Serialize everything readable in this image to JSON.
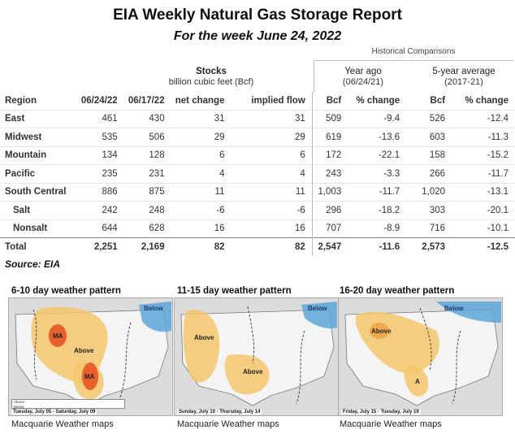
{
  "title": "EIA Weekly Natural Gas Storage Report",
  "subtitle": "For the week June 24, 2022",
  "historical_label": "Historical Comparisons",
  "stocks_header": {
    "title": "Stocks",
    "unit": "billion cubic feet (Bcf)"
  },
  "year_ago_header": {
    "title": "Year ago",
    "date": "(06/24/21)"
  },
  "five_year_header": {
    "title": "5-year average",
    "range": "(2017-21)"
  },
  "columns": [
    "Region",
    "06/24/22",
    "06/17/22",
    "net change",
    "implied flow",
    "Bcf",
    "% change",
    "Bcf",
    "% change"
  ],
  "rows": [
    {
      "region": "East",
      "c1": "461",
      "c2": "430",
      "net": "31",
      "flow": "31",
      "ya_bcf": "509",
      "ya_pct": "-9.4",
      "fy_bcf": "526",
      "fy_pct": "-12.4"
    },
    {
      "region": "Midwest",
      "c1": "535",
      "c2": "506",
      "net": "29",
      "flow": "29",
      "ya_bcf": "619",
      "ya_pct": "-13.6",
      "fy_bcf": "603",
      "fy_pct": "-11.3"
    },
    {
      "region": "Mountain",
      "c1": "134",
      "c2": "128",
      "net": "6",
      "flow": "6",
      "ya_bcf": "172",
      "ya_pct": "-22.1",
      "fy_bcf": "158",
      "fy_pct": "-15.2"
    },
    {
      "region": "Pacific",
      "c1": "235",
      "c2": "231",
      "net": "4",
      "flow": "4",
      "ya_bcf": "243",
      "ya_pct": "-3.3",
      "fy_bcf": "266",
      "fy_pct": "-11.7"
    },
    {
      "region": "South Central",
      "c1": "886",
      "c2": "875",
      "net": "11",
      "flow": "11",
      "ya_bcf": "1,003",
      "ya_pct": "-11.7",
      "fy_bcf": "1,020",
      "fy_pct": "-13.1"
    },
    {
      "region": "Salt",
      "c1": "242",
      "c2": "248",
      "net": "-6",
      "flow": "-6",
      "ya_bcf": "296",
      "ya_pct": "-18.2",
      "fy_bcf": "303",
      "fy_pct": "-20.1"
    },
    {
      "region": "Nonsalt",
      "c1": "644",
      "c2": "628",
      "net": "16",
      "flow": "16",
      "ya_bcf": "707",
      "ya_pct": "-8.9",
      "fy_bcf": "716",
      "fy_pct": "-10.1"
    },
    {
      "region": "Total",
      "c1": "2,251",
      "c2": "2,169",
      "net": "82",
      "flow": "82",
      "ya_bcf": "2,547",
      "ya_pct": "-11.6",
      "fy_bcf": "2,573",
      "fy_pct": "-12.5"
    }
  ],
  "source": "Source: EIA",
  "maps": [
    {
      "title": "6-10 day weather pattern",
      "dates": "Tuesday, July 05 - Saturday, July 09",
      "labels": [
        "MA",
        "Above",
        "MA",
        "Below"
      ],
      "caption": "Macquarie Weather maps"
    },
    {
      "title": "11-15 day weather pattern",
      "dates": "Sunday, July 10 - Thursday, July 14",
      "labels": [
        "Above",
        "Above",
        "Below"
      ],
      "caption": "Macquarie Weather maps"
    },
    {
      "title": "16-20 day weather pattern",
      "dates": "Friday, July 15 - Tuesday, July 19",
      "labels": [
        "Above",
        "A",
        "Below"
      ],
      "caption": "Macquarie Weather maps"
    }
  ],
  "legend": {
    "above": "Above:",
    "below": "Below:"
  },
  "colors": {
    "above": "#f5c56b",
    "ma": "#e8602c",
    "below": "#5aa6d8",
    "map_bg": "#dcdcdc"
  }
}
